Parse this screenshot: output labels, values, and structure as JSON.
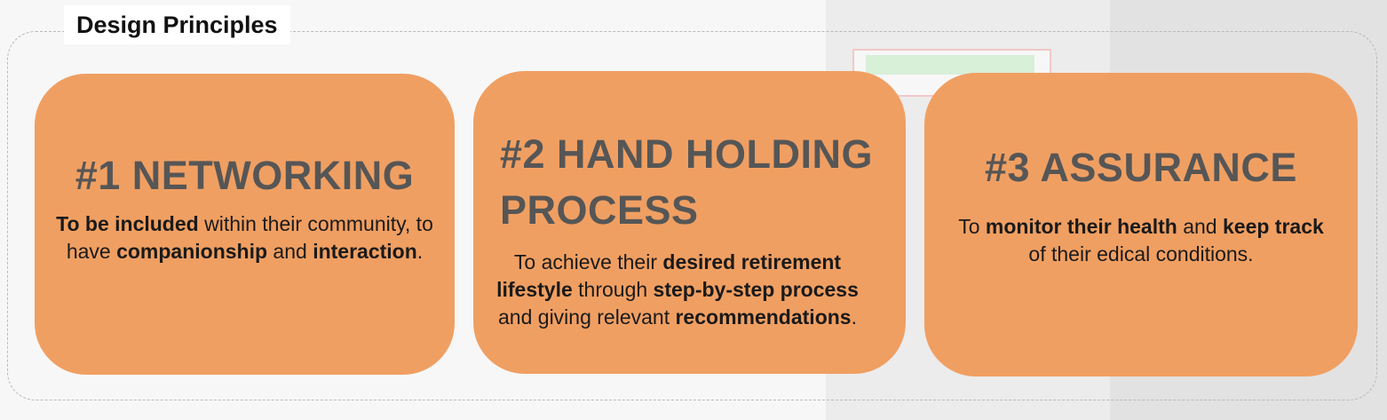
{
  "header": {
    "title": "Design Principles"
  },
  "colors": {
    "card": "#f09f62",
    "heading": "#565656",
    "text": "#1a1a1a",
    "border": "#b9b9b9"
  },
  "principles": [
    {
      "heading": "#1 NETWORKING",
      "parts": [
        {
          "b": "To be included"
        },
        {
          "t": " within their community, to have  "
        },
        {
          "b": "companionship"
        },
        {
          "t": " and "
        },
        {
          "b": "interaction"
        },
        {
          "t": "."
        }
      ]
    },
    {
      "heading_line1": "#2 HAND HOLDING",
      "heading_line2": "PROCESS",
      "parts": [
        {
          "t": "To achieve their "
        },
        {
          "b": "desired retirement lifestyle"
        },
        {
          "t": " through "
        },
        {
          "b": "step-by-step process"
        },
        {
          "t": " and giving relevant "
        },
        {
          "b": "recommendations"
        },
        {
          "t": "."
        }
      ]
    },
    {
      "heading": "#3 ASSURANCE",
      "parts": [
        {
          "t": "To "
        },
        {
          "b": "monitor their health"
        },
        {
          "t": " and "
        },
        {
          "b": "keep track"
        },
        {
          "t": " of their edical conditions."
        }
      ]
    }
  ]
}
